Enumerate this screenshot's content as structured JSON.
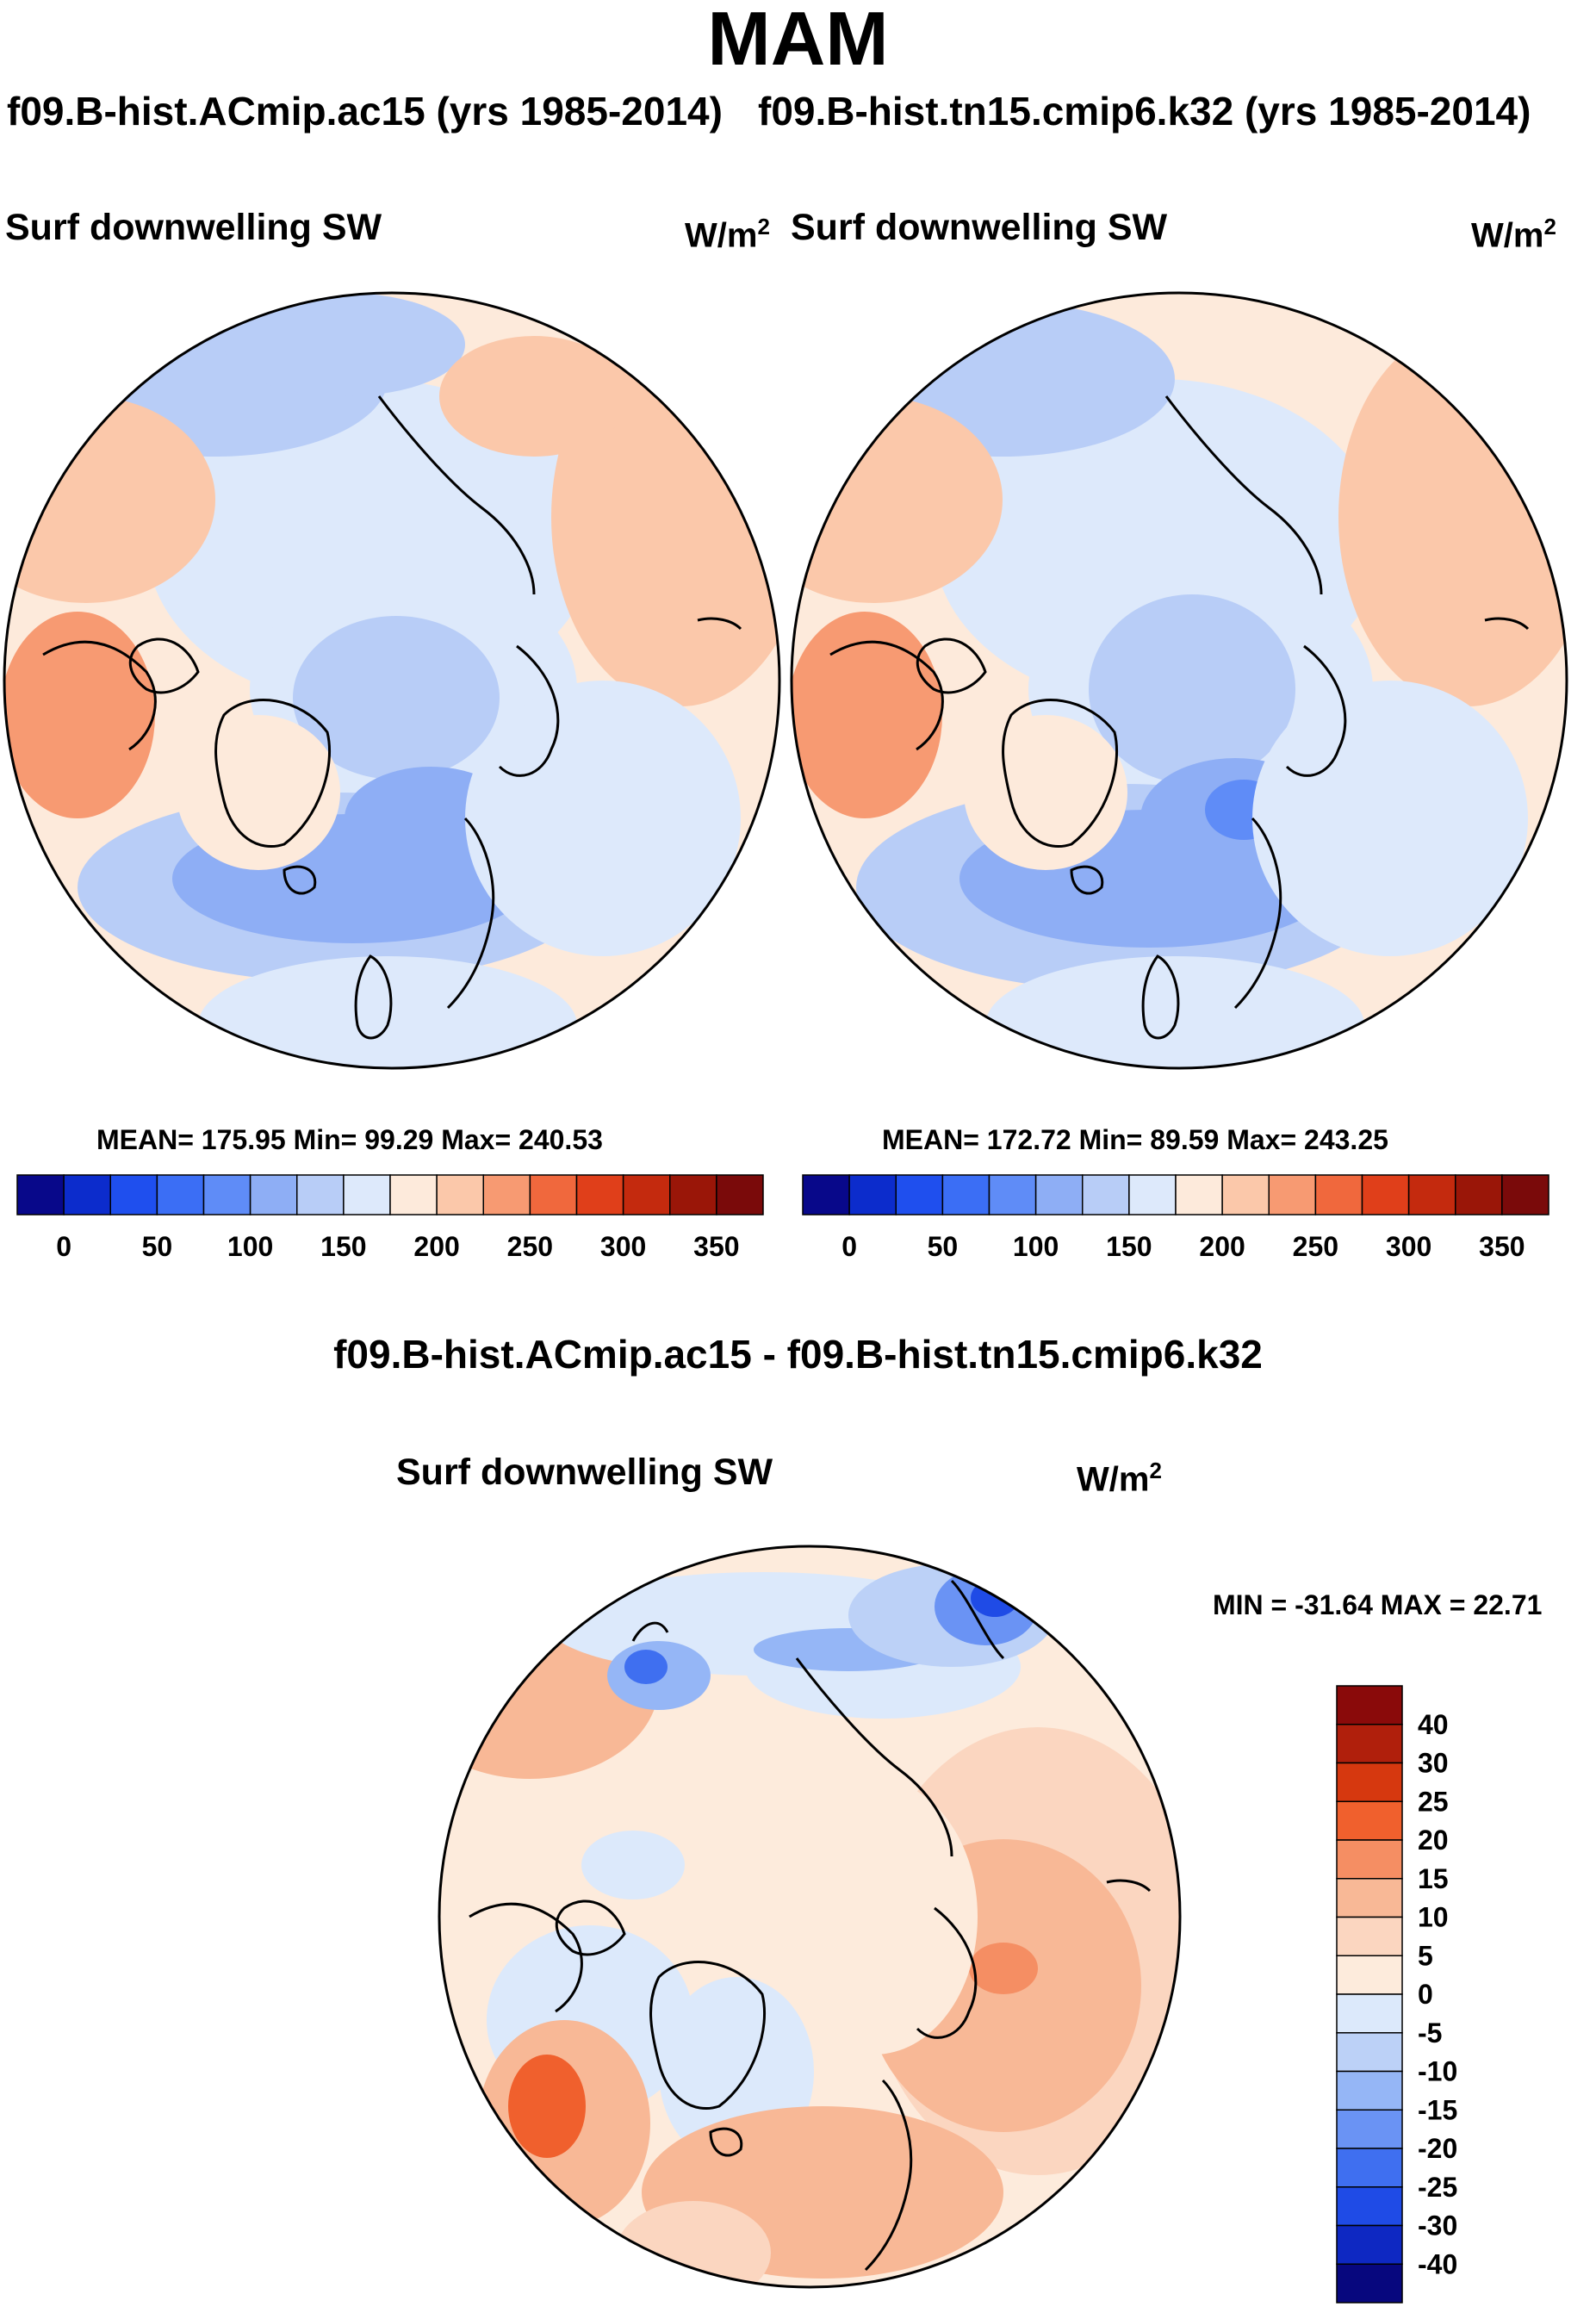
{
  "figure": {
    "title": "MAM",
    "panels": [
      {
        "case": "f09.B-hist.ACmip.ac15 (yrs 1985-2014)",
        "variable": "Surf downwelling SW",
        "units_base": "W/m",
        "units_sup": "2",
        "stats_text": "MEAN= 175.95  Min=  99.29  Max= 240.53"
      },
      {
        "case": "f09.B-hist.tn15.cmip6.k32 (yrs 1985-2014)",
        "variable": "Surf downwelling SW",
        "units_base": "W/m",
        "units_sup": "2",
        "stats_text": "MEAN= 172.72  Min=  89.59  Max= 243.25"
      }
    ],
    "diff": {
      "title": "f09.B-hist.ACmip.ac15 - f09.B-hist.tn15.cmip6.k32",
      "variable": "Surf downwelling SW",
      "units_base": "W/m",
      "units_sup": "2",
      "minmax_text": "MIN = -31.64 MAX =  22.71"
    }
  },
  "chart_data": [
    {
      "type": "heatmap",
      "projection": "north-polar-stereographic",
      "title": "f09.B-hist.ACmip.ac15 (yrs 1985-2014)",
      "variable": "Surf downwelling SW",
      "units": "W/m^2",
      "mean": 175.95,
      "min": 99.29,
      "max": 240.53,
      "colorbar_levels": [
        0,
        25,
        50,
        75,
        100,
        125,
        150,
        175,
        200,
        225,
        250,
        275,
        300,
        325,
        350
      ],
      "colorbar_tick_labels": [
        "0",
        "50",
        "100",
        "150",
        "200",
        "250",
        "300",
        "350"
      ]
    },
    {
      "type": "heatmap",
      "projection": "north-polar-stereographic",
      "title": "f09.B-hist.tn15.cmip6.k32 (yrs 1985-2014)",
      "variable": "Surf downwelling SW",
      "units": "W/m^2",
      "mean": 172.72,
      "min": 89.59,
      "max": 243.25,
      "colorbar_levels": [
        0,
        25,
        50,
        75,
        100,
        125,
        150,
        175,
        200,
        225,
        250,
        275,
        300,
        325,
        350
      ],
      "colorbar_tick_labels": [
        "0",
        "50",
        "100",
        "150",
        "200",
        "250",
        "300",
        "350"
      ]
    },
    {
      "type": "heatmap",
      "projection": "north-polar-stereographic",
      "title": "f09.B-hist.ACmip.ac15 - f09.B-hist.tn15.cmip6.k32",
      "variable": "Surf downwelling SW",
      "units": "W/m^2",
      "min": -31.64,
      "max": 22.71,
      "colorbar_levels": [
        -40,
        -30,
        -25,
        -20,
        -15,
        -10,
        -5,
        0,
        5,
        10,
        15,
        20,
        25,
        30,
        40
      ],
      "colorbar_tick_labels": [
        "40",
        "30",
        "25",
        "20",
        "15",
        "10",
        "5",
        "0",
        "-5",
        "-10",
        "-15",
        "-20",
        "-25",
        "-30",
        "-40"
      ]
    }
  ],
  "colors": {
    "abs_palette": [
      "#08088a",
      "#0c2ccc",
      "#1f4fee",
      "#3b6ef5",
      "#5f8cf7",
      "#8eaef5",
      "#b8cdf7",
      "#dde9fb",
      "#fdeadb",
      "#fbc8aa",
      "#f79a72",
      "#f0683d",
      "#e03f1a",
      "#c42a0e",
      "#9a1608",
      "#7a0a0a"
    ],
    "diff_palette": [
      "#8a0a0a",
      "#b01f0c",
      "#d6380f",
      "#f0602d",
      "#f58e63",
      "#f8b896",
      "#fbd6c0",
      "#fdebdc",
      "#dce9fb",
      "#bcd1f7",
      "#95b6f6",
      "#6a93f4",
      "#3f6ff0",
      "#1f4be6",
      "#0e28c2",
      "#07077e"
    ],
    "land_outline": "#000000"
  }
}
